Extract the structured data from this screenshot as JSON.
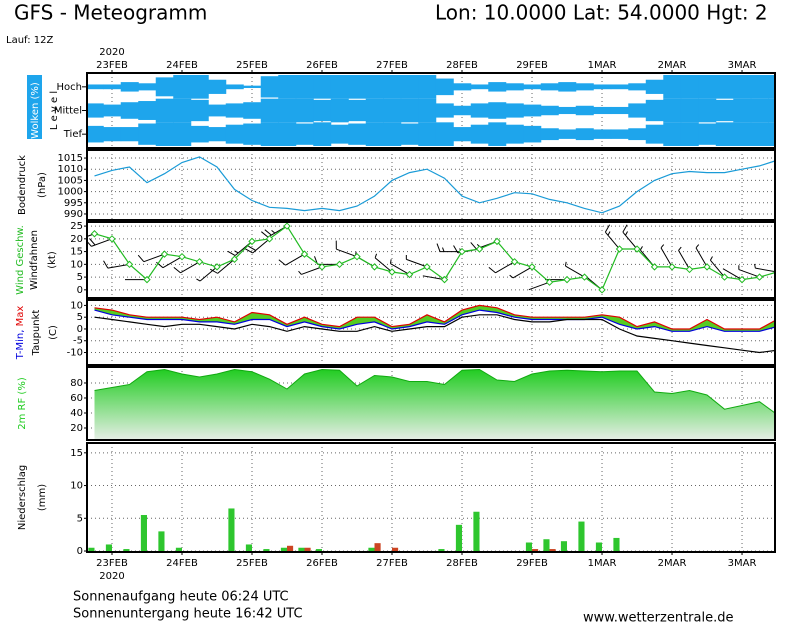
{
  "header": {
    "title": "GFS - Meteogramm",
    "location": "Lon: 10.0000 Lat: 54.0000 Hgt: 2",
    "run": "Lauf: 12Z"
  },
  "footer": {
    "sunrise": "Sonnenaufgang heute 06:24 UTC",
    "sunset": "Sonnenuntergang heute 16:42 UTC",
    "source": "www.wetterzentrale.de"
  },
  "chart_data": [
    {
      "type": "cloud",
      "ylabel": "Wolken (%)",
      "levels_label": "L e v e l",
      "color": "#1ea5ec",
      "year": "2020",
      "xlim": [
        -0.357,
        9.471
      ],
      "xticks": [
        {
          "value": 0,
          "label": "23FEB"
        },
        {
          "value": 1,
          "label": "24FEB"
        },
        {
          "value": 2,
          "label": "25FEB"
        },
        {
          "value": 3,
          "label": "26FEB"
        },
        {
          "value": 4,
          "label": "27FEB"
        },
        {
          "value": 5,
          "label": "28FEB"
        },
        {
          "value": 6,
          "label": "29FEB"
        },
        {
          "value": 7,
          "label": "1MAR"
        },
        {
          "value": 8,
          "label": "2MAR"
        },
        {
          "value": 9,
          "label": "3MAR"
        }
      ],
      "x": [
        -0.25,
        0,
        0.25,
        0.5,
        0.75,
        1,
        1.25,
        1.5,
        1.75,
        2,
        2.25,
        2.5,
        2.75,
        3,
        3.25,
        3.5,
        3.75,
        4,
        4.25,
        4.5,
        4.75,
        5,
        5.25,
        5.5,
        5.75,
        6,
        6.25,
        6.5,
        6.75,
        7,
        7.25,
        7.5,
        7.75,
        8,
        8.25,
        8.5,
        8.75,
        9,
        9.25,
        9.5
      ],
      "series": [
        {
          "name": "Hoch",
          "values": [
            20,
            20,
            40,
            30,
            80,
            100,
            100,
            60,
            20,
            10,
            90,
            100,
            100,
            100,
            100,
            100,
            100,
            100,
            100,
            100,
            70,
            30,
            20,
            40,
            30,
            20,
            30,
            40,
            30,
            20,
            20,
            30,
            60,
            100,
            100,
            100,
            100,
            100,
            100,
            100
          ]
        },
        {
          "name": "Mittel",
          "values": [
            60,
            50,
            70,
            80,
            100,
            100,
            90,
            50,
            60,
            70,
            100,
            100,
            100,
            90,
            100,
            90,
            100,
            100,
            100,
            100,
            60,
            40,
            60,
            70,
            60,
            50,
            40,
            30,
            40,
            30,
            30,
            60,
            90,
            100,
            100,
            100,
            90,
            100,
            100,
            100
          ]
        },
        {
          "name": "Tief",
          "values": [
            70,
            60,
            60,
            90,
            100,
            100,
            70,
            60,
            80,
            90,
            100,
            100,
            90,
            100,
            80,
            90,
            100,
            100,
            90,
            100,
            100,
            60,
            80,
            100,
            80,
            70,
            50,
            40,
            50,
            40,
            40,
            50,
            80,
            100,
            100,
            90,
            100,
            100,
            100,
            100
          ]
        }
      ]
    },
    {
      "type": "line",
      "ylabel": "Bodendruck",
      "unit": "(hPa)",
      "grid": true,
      "xlim": [
        -0.357,
        9.471
      ],
      "ylim": [
        987.3,
        1018.6
      ],
      "yticks": [
        990,
        995,
        1000,
        1005,
        1010,
        1015
      ],
      "x": [
        -0.25,
        0,
        0.25,
        0.5,
        0.75,
        1,
        1.25,
        1.5,
        1.75,
        2,
        2.25,
        2.5,
        2.75,
        3,
        3.25,
        3.5,
        3.75,
        4,
        4.25,
        4.5,
        4.75,
        5,
        5.25,
        5.5,
        5.75,
        6,
        6.25,
        6.5,
        6.75,
        7,
        7.25,
        7.5,
        7.75,
        8,
        8.25,
        8.5,
        8.75,
        9,
        9.25,
        9.5
      ],
      "series": [
        {
          "color": "#1a9bd7",
          "values": [
            1007,
            1009.5,
            1011,
            1004,
            1008,
            1013,
            1015.5,
            1011,
            1001,
            996,
            993,
            992.5,
            991.5,
            992.5,
            991.5,
            993.5,
            998,
            1005,
            1008.5,
            1010,
            1006,
            998,
            995,
            997,
            999.5,
            999,
            996.5,
            995,
            992.5,
            990.5,
            993.5,
            1000,
            1005,
            1008,
            1009,
            1008.5,
            1008.5,
            1010,
            1011.5,
            1014
          ]
        }
      ]
    },
    {
      "type": "line",
      "unit": "(kt)",
      "grid": true,
      "markers": true,
      "xlim": [
        -0.357,
        9.471
      ],
      "ylim": [
        -3.2,
        26.6
      ],
      "yticks": [
        0,
        5,
        10,
        15,
        20,
        25
      ],
      "x": [
        -0.25,
        0,
        0.25,
        0.5,
        0.75,
        1,
        1.25,
        1.5,
        1.75,
        2,
        2.25,
        2.5,
        2.75,
        3,
        3.25,
        3.5,
        3.75,
        4,
        4.25,
        4.5,
        4.75,
        5,
        5.25,
        5.5,
        5.75,
        6,
        6.25,
        6.5,
        6.75,
        7,
        7.25,
        7.5,
        7.75,
        8,
        8.25,
        8.5,
        8.75,
        9,
        9.25,
        9.5
      ],
      "series": [
        {
          "name": "Wind Geschw.",
          "color": "#22bb22",
          "values": [
            22,
            20,
            10,
            4,
            14,
            13,
            11,
            9,
            12,
            19,
            20,
            25,
            14,
            9,
            10,
            13,
            9,
            7,
            6,
            9,
            4,
            15,
            16,
            19,
            11,
            9,
            3,
            4,
            5,
            0,
            16,
            16,
            9,
            9,
            8,
            9,
            5,
            4,
            5,
            7
          ]
        }
      ],
      "barbs": {
        "name": "Windfahnen",
        "color": "#000000",
        "directions": [
          250,
          250,
          260,
          270,
          250,
          240,
          240,
          230,
          230,
          230,
          230,
          240,
          240,
          250,
          270,
          290,
          300,
          310,
          300,
          290,
          280,
          270,
          260,
          250,
          240,
          240,
          250,
          270,
          300,
          310,
          320,
          320,
          320,
          330,
          330,
          330,
          320,
          300,
          290,
          280
        ]
      }
    },
    {
      "type": "line",
      "unit": "(C)",
      "grid": true,
      "band": true,
      "band_color": "#55cc22",
      "xlim": [
        -0.357,
        9.471
      ],
      "ylim": [
        -15.3,
        12.3
      ],
      "yticks": [
        -10,
        -5,
        0,
        5,
        10
      ],
      "x": [
        -0.25,
        0,
        0.25,
        0.5,
        0.75,
        1,
        1.25,
        1.5,
        1.75,
        2,
        2.25,
        2.5,
        2.75,
        3,
        3.25,
        3.5,
        3.75,
        4,
        4.25,
        4.5,
        4.75,
        5,
        5.25,
        5.5,
        5.75,
        6,
        6.25,
        6.5,
        6.75,
        7,
        7.25,
        7.5,
        7.75,
        8,
        8.25,
        8.5,
        8.75,
        9,
        9.25,
        9.5
      ],
      "series": [
        {
          "name": "T-Min,",
          "color": "#0000dd",
          "values": [
            8,
            6,
            5,
            4,
            4,
            4,
            3,
            3,
            2,
            4,
            4,
            1,
            3,
            1,
            0,
            2,
            3,
            0,
            1,
            3,
            2,
            6,
            8,
            7,
            5,
            4,
            4,
            4,
            4,
            5,
            2,
            0,
            1,
            -1,
            -1,
            1,
            -1,
            -1,
            -1,
            1
          ]
        },
        {
          "name": "Max",
          "color": "#e00000",
          "values": [
            9,
            8,
            6,
            5,
            5,
            5,
            4,
            5,
            3,
            7,
            6,
            2,
            5,
            2,
            1,
            5,
            5,
            1,
            2,
            6,
            3,
            8,
            10,
            9,
            6,
            5,
            5,
            5,
            5,
            6,
            5,
            1,
            3,
            0,
            0,
            4,
            0,
            0,
            0,
            4
          ]
        },
        {
          "name": "Taupunkt",
          "color": "#000000",
          "values": [
            5,
            4,
            3,
            2,
            1,
            2,
            2,
            1,
            0,
            2,
            1,
            -1,
            1,
            0,
            -1,
            -1,
            1,
            -1,
            0,
            1,
            1,
            5,
            6,
            6,
            4,
            3,
            3,
            4,
            4,
            4,
            0,
            -3,
            -4,
            -5,
            -6,
            -7,
            -8,
            -9,
            -10,
            -9
          ]
        }
      ]
    },
    {
      "type": "area",
      "grid": true,
      "fade_color": "#e6eee6",
      "xlim": [
        -0.357,
        9.471
      ],
      "ylim": [
        4,
        101.3
      ],
      "yticks": [
        20,
        40,
        60,
        80
      ],
      "x": [
        -0.25,
        0,
        0.25,
        0.5,
        0.75,
        1,
        1.25,
        1.5,
        1.75,
        2,
        2.25,
        2.5,
        2.75,
        3,
        3.25,
        3.5,
        3.75,
        4,
        4.25,
        4.5,
        4.75,
        5,
        5.25,
        5.5,
        5.75,
        6,
        6.25,
        6.5,
        6.75,
        7,
        7.25,
        7.5,
        7.75,
        8,
        8.25,
        8.5,
        8.75,
        9,
        9.25,
        9.5
      ],
      "series": [
        {
          "name": "2m RF (%)",
          "color": "#22cc22",
          "values": [
            70,
            74,
            78,
            95,
            98,
            92,
            88,
            92,
            98,
            95,
            85,
            72,
            92,
            98,
            97,
            76,
            90,
            88,
            82,
            82,
            78,
            97,
            98,
            84,
            82,
            92,
            96,
            97,
            96,
            95,
            96,
            96,
            68,
            66,
            70,
            64,
            45,
            50,
            55,
            38
          ]
        }
      ]
    },
    {
      "type": "bar",
      "ylabel": "Niederschlag",
      "unit": "(mm)",
      "grid": true,
      "year": "2020",
      "xlim": [
        -0.357,
        9.471
      ],
      "ylim": [
        -0.15,
        16.5
      ],
      "yticks": [
        0,
        5,
        10,
        15
      ],
      "xticks": [
        {
          "value": 0,
          "label": "23FEB"
        },
        {
          "value": 1,
          "label": "24FEB"
        },
        {
          "value": 2,
          "label": "25FEB"
        },
        {
          "value": 3,
          "label": "26FEB"
        },
        {
          "value": 4,
          "label": "27FEB"
        },
        {
          "value": 5,
          "label": "28FEB"
        },
        {
          "value": 6,
          "label": "29FEB"
        },
        {
          "value": 7,
          "label": "1MAR"
        },
        {
          "value": 8,
          "label": "2MAR"
        },
        {
          "value": 9,
          "label": "3MAR"
        }
      ],
      "x": [
        -0.25,
        0,
        0.25,
        0.5,
        0.75,
        1,
        1.25,
        1.5,
        1.75,
        2,
        2.25,
        2.5,
        2.75,
        3,
        3.25,
        3.5,
        3.75,
        4,
        4.25,
        4.5,
        4.75,
        5,
        5.25,
        5.5,
        5.75,
        6,
        6.25,
        6.5,
        6.75,
        7,
        7.25,
        7.5,
        7.75,
        8,
        8.25,
        8.5,
        8.75,
        9,
        9.25,
        9.5
      ],
      "series": [
        {
          "color": "#2ec62e",
          "values": [
            0.5,
            1,
            0.3,
            5.5,
            3,
            0.5,
            0,
            0,
            6.5,
            1,
            0.3,
            0.5,
            0.5,
            0.3,
            0,
            0,
            0.5,
            0,
            0,
            0,
            0.3,
            4,
            6,
            0,
            0,
            1.3,
            1.8,
            1.5,
            4.5,
            1.3,
            2,
            0,
            0,
            0,
            0,
            0,
            0,
            0,
            0,
            0
          ]
        },
        {
          "color": "#cc4422",
          "values": [
            0,
            0,
            0,
            0,
            0,
            0,
            0,
            0,
            0,
            0,
            0,
            0.8,
            0.5,
            0,
            0,
            0,
            1.2,
            0.5,
            0,
            0,
            0,
            0,
            0,
            0,
            0,
            0.3,
            0.3,
            0,
            0,
            0,
            0,
            0,
            0,
            0,
            0,
            0,
            0,
            0,
            0,
            0
          ]
        }
      ]
    }
  ]
}
